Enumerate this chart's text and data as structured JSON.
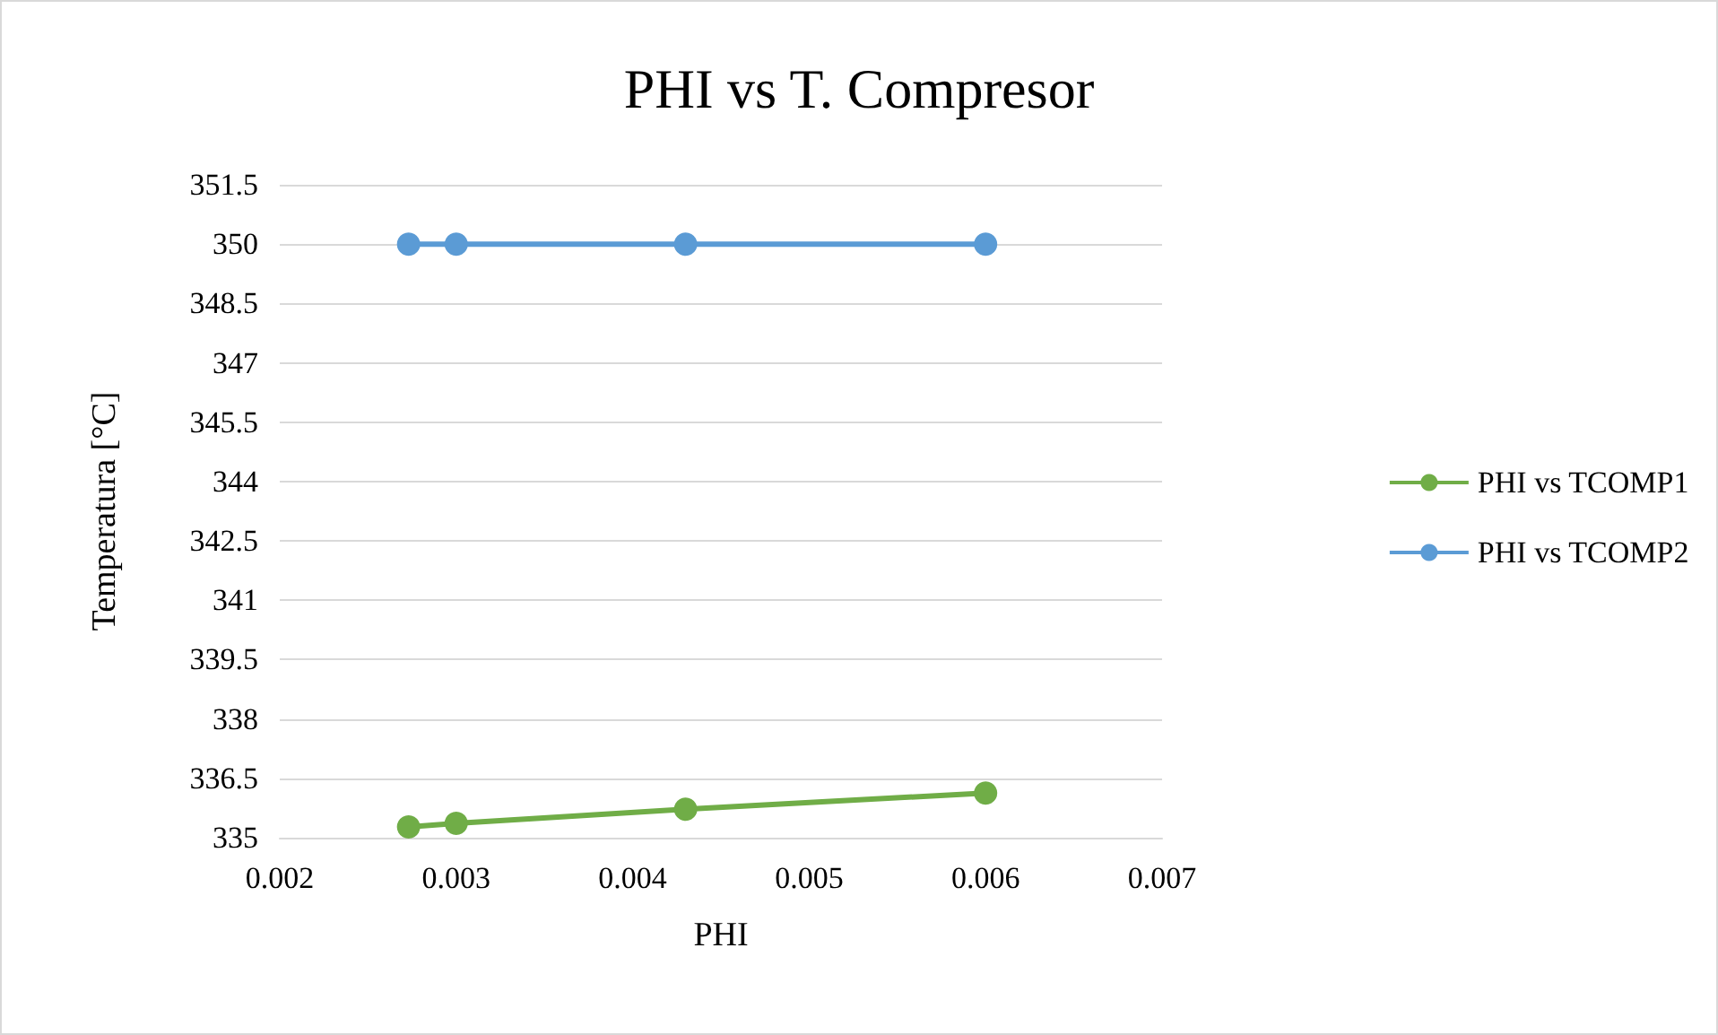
{
  "chart_data": {
    "type": "line",
    "title": "PHI vs T. Compresor",
    "xlabel": "PHI",
    "ylabel": "Temperatura [°C]",
    "series": [
      {
        "name": "PHI vs TCOMP1",
        "color": "#70ad47",
        "x": [
          0.00273,
          0.003,
          0.0043,
          0.006
        ],
        "values": [
          335.27,
          335.36,
          335.72,
          336.13
        ]
      },
      {
        "name": "PHI vs TCOMP2",
        "color": "#5b9bd5",
        "x": [
          0.00273,
          0.003,
          0.0043,
          0.006
        ],
        "values": [
          350,
          350,
          350,
          350
        ]
      }
    ],
    "xlim": [
      0.002,
      0.007
    ],
    "xticks": [
      0.002,
      0.003,
      0.004,
      0.005,
      0.006,
      0.007
    ],
    "ylim": [
      335,
      351.5
    ],
    "yticks": [
      335,
      336.5,
      338,
      339.5,
      341,
      342.5,
      344,
      345.5,
      347,
      348.5,
      350,
      351.5
    ],
    "grid": "y",
    "legend": "right",
    "marker": "circle",
    "line_style": "solid"
  }
}
